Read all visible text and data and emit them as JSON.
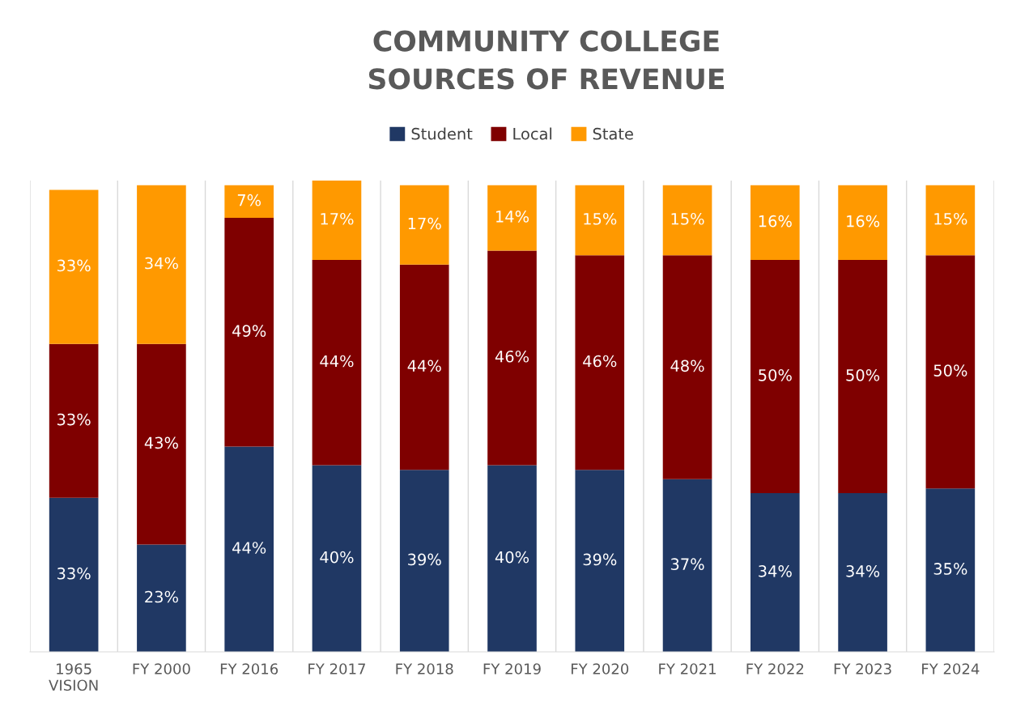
{
  "chart_data": {
    "type": "bar",
    "title": "COMMUNITY COLLEGE\nSOURCES OF REVENUE",
    "stacked": true,
    "legend": "top",
    "grid": "x",
    "categories": [
      "1965 VISION",
      "FY 2000",
      "FY 2016",
      "FY 2017",
      "FY 2018",
      "FY 2019",
      "FY 2020",
      "FY 2021",
      "FY 2022",
      "FY 2023",
      "FY 2024"
    ],
    "series": [
      {
        "name": "Student",
        "color": "#203864",
        "values": [
          33,
          23,
          44,
          40,
          39,
          40,
          39,
          37,
          34,
          34,
          35
        ],
        "value_labels": [
          "33%",
          "23%",
          "44%",
          "40%",
          "39%",
          "40%",
          "39%",
          "37%",
          "34%",
          "34%",
          "35%"
        ]
      },
      {
        "name": "Local",
        "color": "#7f0000",
        "values": [
          33,
          43,
          49,
          44,
          44,
          46,
          46,
          48,
          50,
          50,
          50
        ],
        "value_labels": [
          "33%",
          "43%",
          "49%",
          "44%",
          "44%",
          "46%",
          "46%",
          "48%",
          "50%",
          "50%",
          "50%"
        ]
      },
      {
        "name": "State",
        "color": "#ff9900",
        "values": [
          33,
          34,
          7,
          17,
          17,
          14,
          15,
          15,
          16,
          16,
          15
        ],
        "value_labels": [
          "33%",
          "34%",
          "7%",
          "17%",
          "17%",
          "14%",
          "15%",
          "15%",
          "16%",
          "16%",
          "15%"
        ]
      }
    ]
  }
}
